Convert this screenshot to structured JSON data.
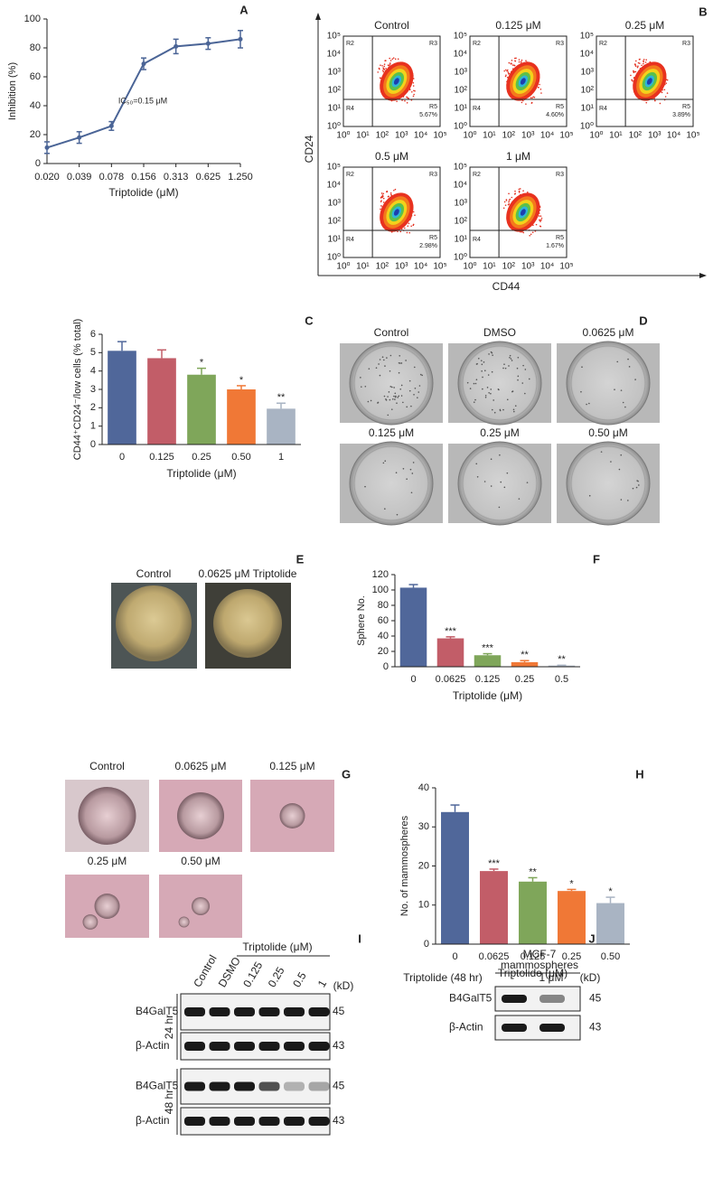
{
  "chart_data": [
    {
      "panel": "A",
      "type": "line",
      "categories": [
        "0.020",
        "0.039",
        "0.078",
        "0.156",
        "0.313",
        "0.625",
        "1.250"
      ],
      "values": [
        11,
        18,
        26,
        69,
        81,
        83,
        86
      ],
      "errors": [
        4,
        4,
        3,
        4,
        5,
        4,
        6
      ],
      "color": "#4a6496",
      "xlabel": "Triptolide (μM)",
      "ylabel": "Inhibition (%)",
      "ylim": [
        0,
        100
      ],
      "yticks": [
        0,
        20,
        40,
        60,
        80,
        100
      ],
      "annotation": "IC₅₀=0.15 μM"
    },
    {
      "panel": "C",
      "type": "bar",
      "categories": [
        "0",
        "0.125",
        "0.25",
        "0.50",
        "1"
      ],
      "values": [
        5.1,
        4.7,
        3.8,
        3.0,
        1.95
      ],
      "errors": [
        0.5,
        0.45,
        0.35,
        0.2,
        0.3
      ],
      "colors": [
        "#50679a",
        "#c25d68",
        "#7fa65a",
        "#f07836",
        "#a9b4c3"
      ],
      "significance": [
        null,
        null,
        "*",
        "*",
        "**"
      ],
      "xlabel": "Triptolide (μM)",
      "ylabel": "CD44⁺CD24⁻/low cells (% total)",
      "ylim": [
        0,
        6
      ],
      "yticks": [
        0,
        1,
        2,
        3,
        4,
        5,
        6
      ]
    },
    {
      "panel": "F",
      "type": "bar",
      "categories": [
        "0",
        "0.0625",
        "0.125",
        "0.25",
        "0.5"
      ],
      "values": [
        103,
        37,
        15,
        6,
        1.5
      ],
      "errors": [
        4,
        2,
        2,
        2,
        0.5
      ],
      "colors": [
        "#50679a",
        "#c25d68",
        "#7fa65a",
        "#f07836",
        "#a9b4c3"
      ],
      "significance": [
        null,
        "***",
        "***",
        "**",
        "**"
      ],
      "xlabel": "Triptolide (μM)",
      "ylabel": "Sphere No.",
      "ylim": [
        0,
        120
      ],
      "yticks": [
        0,
        20,
        40,
        60,
        80,
        100,
        120
      ]
    },
    {
      "panel": "H",
      "type": "bar",
      "categories": [
        "0",
        "0.0625",
        "0.125",
        "0.25",
        "0.50"
      ],
      "values": [
        33.8,
        18.7,
        16,
        13.6,
        10.5
      ],
      "errors": [
        1.8,
        0.5,
        1,
        0.4,
        1.5
      ],
      "colors": [
        "#50679a",
        "#c25d68",
        "#7fa65a",
        "#f07836",
        "#a9b4c3"
      ],
      "significance": [
        null,
        "***",
        "**",
        "*",
        "*"
      ],
      "xlabel": "Triptolide (μM)",
      "ylabel": "No. of mammospheres",
      "ylim": [
        0,
        40
      ],
      "yticks": [
        0,
        10,
        20,
        30,
        40
      ]
    }
  ],
  "flow": {
    "panel": "B",
    "ylabel": "CD24",
    "xlabel": "CD44",
    "ticks": [
      "10⁰",
      "10¹",
      "10²",
      "10³",
      "10⁴",
      "10⁵"
    ],
    "quadrants": [
      "R2",
      "R3",
      "R4",
      "R5"
    ],
    "plots": [
      {
        "title": "Control",
        "r5": "5.67%"
      },
      {
        "title": "0.125 μM",
        "r5": "4.60%"
      },
      {
        "title": "0.25 μM",
        "r5": "3.89%"
      },
      {
        "title": "0.5 μM",
        "r5": "2.98%"
      },
      {
        "title": "1 μM",
        "r5": "1.67%"
      }
    ]
  },
  "colony": {
    "panel": "D",
    "labels": [
      "Control",
      "DMSO",
      "0.0625 μM",
      "0.125 μM",
      "0.25 μM",
      "0.50 μM"
    ]
  },
  "sphere": {
    "panel": "E",
    "labels": [
      "Control",
      "0.0625 μM Triptolide"
    ]
  },
  "mammosphere": {
    "panel": "G",
    "labels": [
      "Control",
      "0.0625 μM",
      "0.125 μM",
      "0.25 μM",
      "0.50 μM"
    ]
  },
  "blot_i": {
    "panel": "I",
    "treatment": "Triptolide (μM)",
    "lanes": [
      "Control",
      "DSMO",
      "0.125",
      "0.25",
      "0.5",
      "1"
    ],
    "unit": "(kD)",
    "times": [
      "24 hr",
      "48 hr"
    ],
    "proteins": [
      "B4GalT5",
      "β-Actin"
    ],
    "sizes": [
      45,
      43
    ]
  },
  "blot_j": {
    "panel": "J",
    "title": [
      "MCF-7",
      "mammospheres"
    ],
    "treatment": "Triptolide (48 hr)",
    "lanes": [
      "-",
      "1 μM"
    ],
    "unit": "(kD)",
    "proteins": [
      "B4GalT5",
      "β-Actin"
    ],
    "sizes": [
      45,
      43
    ]
  }
}
